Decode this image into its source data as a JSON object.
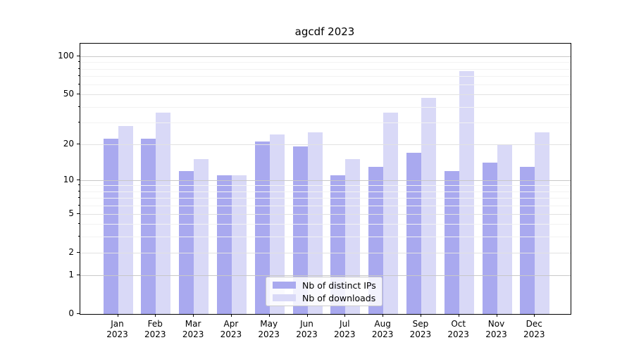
{
  "chart_data": {
    "type": "bar",
    "title": "agcdf 2023",
    "categories": [
      "Jan 2023",
      "Feb 2023",
      "Mar 2023",
      "Apr 2023",
      "May 2023",
      "Jun 2023",
      "Jul 2023",
      "Aug 2023",
      "Sep 2023",
      "Oct 2023",
      "Nov 2023",
      "Dec 2023"
    ],
    "series": [
      {
        "name": "Nb of distinct IPs",
        "color": "#a9a9ef",
        "values": [
          22,
          22,
          12,
          11,
          21,
          19,
          11,
          13,
          17,
          12,
          14,
          13
        ]
      },
      {
        "name": "Nb of downloads",
        "color": "#d9d9f7",
        "values": [
          28,
          36,
          15,
          11,
          24,
          25,
          15,
          36,
          47,
          77,
          20,
          25
        ]
      }
    ],
    "yscale": "log1p",
    "yticks": [
      0,
      1,
      2,
      5,
      10,
      20,
      50,
      100
    ],
    "ylim": [
      0,
      126
    ],
    "xlabel": "",
    "ylabel": "",
    "grid": true,
    "legend_position": "lower center"
  }
}
